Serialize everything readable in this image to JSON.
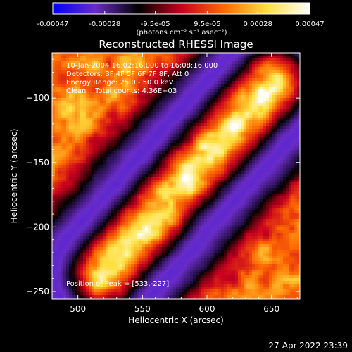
{
  "chart_data": {
    "type": "heatmap",
    "title": "Reconstructed RHESSI Image",
    "xlabel": "Heliocentric X (arcsec)",
    "ylabel": "Heliocentric Y (arcsec)",
    "xlim": [
      480,
      672
    ],
    "ylim": [
      -256,
      -65
    ],
    "xticks": [
      500,
      550,
      600,
      650
    ],
    "yticks": [
      -100,
      -150,
      -200,
      -250
    ],
    "colorbar": {
      "ticks": [
        "-0.00047",
        "-0.00028",
        "-9.5e-05",
        "9.5e-05",
        "0.00028",
        "0.00047"
      ],
      "tick_values": [
        -0.00047,
        -0.00028,
        -9.5e-05,
        9.5e-05,
        0.00028,
        0.00047
      ],
      "range": [
        -0.00047,
        0.00047
      ],
      "unit_label": "(photons cm⁻² s⁻¹ asec⁻²)",
      "colors": [
        "#0000ff",
        "#6a2cc8",
        "#000000",
        "#c8001e",
        "#ff6a00",
        "#ffe040",
        "#ffffff"
      ]
    },
    "annotations": {
      "time_range": "10-Jan-2004 16:02:16.000 to 16:08:16.000",
      "detectors": "Detectors: 3F 4F 5F 6F 7F 8F, Att 0",
      "energy": "Energy Range: 25.0 - 50.0 keV",
      "clean": "Clean    Total counts: 4.36E+03",
      "peak": "Position of Peak = [533,-227]"
    },
    "peak_position": [
      533,
      -227
    ],
    "ridge": {
      "description_points": [
        [
          520,
          -236
        ],
        [
          547,
          -206
        ],
        [
          575,
          -173
        ],
        [
          600,
          -145
        ],
        [
          630,
          -112
        ],
        [
          652,
          -88
        ]
      ],
      "level": 0.0004
    }
  },
  "footer": {
    "timestamp": "27-Apr-2022 23:39"
  }
}
